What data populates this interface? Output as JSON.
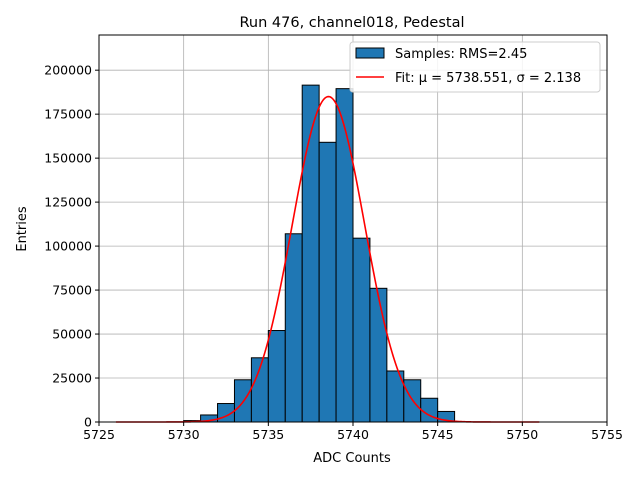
{
  "chart_data": {
    "type": "bar",
    "title": "Run 476, channel018, Pedestal",
    "xlabel": "ADC Counts",
    "ylabel": "Entries",
    "xlim": [
      5725,
      5755
    ],
    "ylim": [
      0,
      220000
    ],
    "xticks": [
      5725,
      5730,
      5735,
      5740,
      5745,
      5750,
      5755
    ],
    "yticks": [
      0,
      25000,
      50000,
      75000,
      100000,
      125000,
      150000,
      175000,
      200000
    ],
    "grid": true,
    "legend_position": "top-right",
    "bins": [
      5730,
      5731,
      5732,
      5733,
      5734,
      5735,
      5736,
      5737,
      5738,
      5739,
      5740,
      5741,
      5742,
      5743,
      5744,
      5745
    ],
    "bin_width": 1,
    "series": [
      {
        "name": "Samples: RMS=2.45",
        "type": "bar",
        "color": "#1f77b4",
        "values": [
          800,
          4000,
          10500,
          24000,
          36500,
          52000,
          107000,
          191500,
          159000,
          189500,
          104500,
          76000,
          29000,
          24000,
          13500,
          6000
        ]
      },
      {
        "name": "Fit: μ = 5738.551, σ = 2.138",
        "type": "line",
        "color": "#ff0000",
        "mu": 5738.551,
        "sigma": 2.138,
        "amplitude": 185000,
        "x_range": [
          5726,
          5751
        ]
      }
    ]
  }
}
